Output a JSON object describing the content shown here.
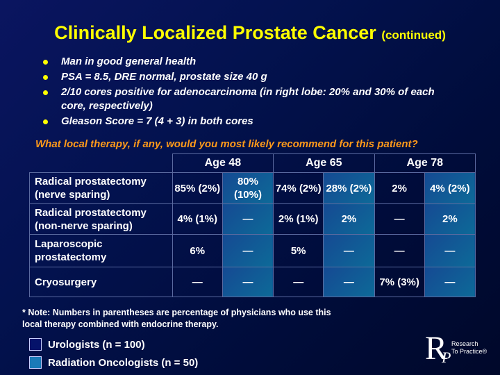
{
  "title": {
    "main": "Clinically Localized Prostate Cancer",
    "sub": "(continued)"
  },
  "bullets": [
    "Man in good general health",
    "PSA = 8.5, DRE normal, prostate size 40 g",
    "2/10 cores positive for adenocarcinoma (in right lobe: 20% and 30% of each core, respectively)",
    "Gleason Score = 7 (4 + 3) in both cores"
  ],
  "question": "What local therapy, if any, would you most likely recommend for this patient?",
  "table": {
    "headers": [
      "Age 48",
      "Age 65",
      "Age 78"
    ],
    "rows": [
      {
        "label": "Radical prostatectomy (nerve sparing)",
        "cells": [
          "85% (2%)",
          "80% (10%)",
          "74% (2%)",
          "28% (2%)",
          "2%",
          "4% (2%)"
        ]
      },
      {
        "label": "Radical prostatectomy (non-nerve sparing)",
        "cells": [
          "4% (1%)",
          "—",
          "2% (1%)",
          "2%",
          "—",
          "2%"
        ]
      },
      {
        "label": "Laparoscopic prostatectomy",
        "cells": [
          "6%",
          "—",
          "5%",
          "—",
          "—",
          "—"
        ]
      },
      {
        "label": "Cryosurgery",
        "cells": [
          "—",
          "—",
          "—",
          "—",
          "7% (3%)",
          "—"
        ]
      }
    ]
  },
  "note": "* Note: Numbers in parentheses are percentage of physicians who use this local therapy combined with endocrine therapy.",
  "legend": [
    {
      "label": "Urologists  (n = 100)",
      "color": "#05126a"
    },
    {
      "label": "Radiation Oncologists  (n = 50)",
      "color": "#1a7ab8"
    }
  ],
  "logo": {
    "letters": "RP",
    "line1": "Research",
    "line2": "To Practice®"
  }
}
